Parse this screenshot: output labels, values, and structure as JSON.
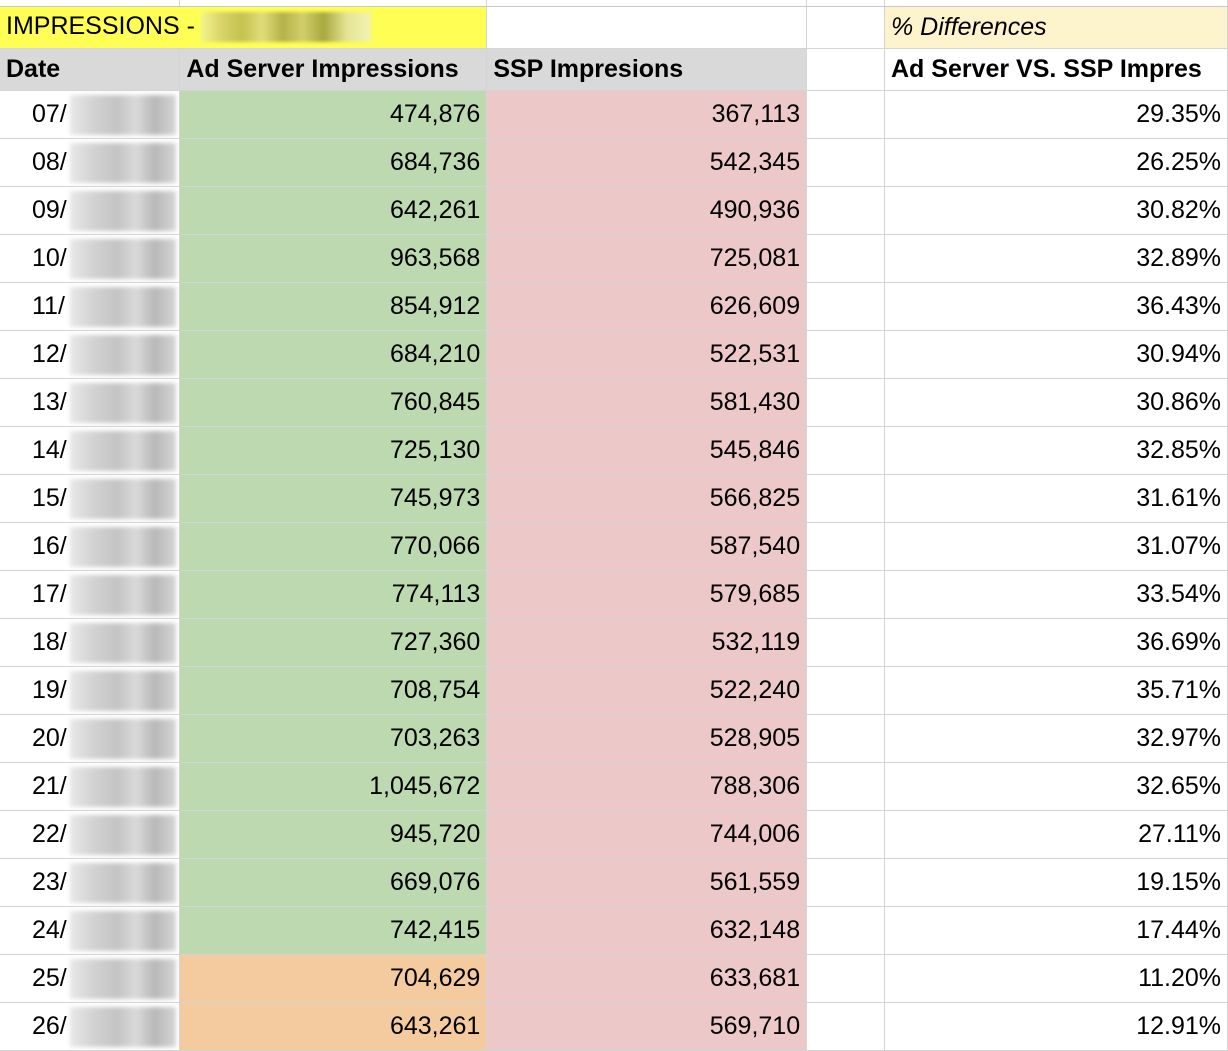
{
  "sheet": {
    "title": "IMPRESSIONS -",
    "pct_title": "% Differences",
    "headers": {
      "date": "Date",
      "ad_server": "Ad Server Impressions",
      "ssp": "SSP Impresions",
      "diff": "Ad Server VS. SSP Impres"
    },
    "rows": [
      {
        "date": "07/",
        "ad_server": "474,876",
        "ssp": "367,113",
        "diff": "29.35%",
        "ad_fill": "green"
      },
      {
        "date": "08/",
        "ad_server": "684,736",
        "ssp": "542,345",
        "diff": "26.25%",
        "ad_fill": "green"
      },
      {
        "date": "09/",
        "ad_server": "642,261",
        "ssp": "490,936",
        "diff": "30.82%",
        "ad_fill": "green"
      },
      {
        "date": "10/",
        "ad_server": "963,568",
        "ssp": "725,081",
        "diff": "32.89%",
        "ad_fill": "green"
      },
      {
        "date": "11/",
        "ad_server": "854,912",
        "ssp": "626,609",
        "diff": "36.43%",
        "ad_fill": "green"
      },
      {
        "date": "12/",
        "ad_server": "684,210",
        "ssp": "522,531",
        "diff": "30.94%",
        "ad_fill": "green"
      },
      {
        "date": "13/",
        "ad_server": "760,845",
        "ssp": "581,430",
        "diff": "30.86%",
        "ad_fill": "green"
      },
      {
        "date": "14/",
        "ad_server": "725,130",
        "ssp": "545,846",
        "diff": "32.85%",
        "ad_fill": "green"
      },
      {
        "date": "15/",
        "ad_server": "745,973",
        "ssp": "566,825",
        "diff": "31.61%",
        "ad_fill": "green"
      },
      {
        "date": "16/",
        "ad_server": "770,066",
        "ssp": "587,540",
        "diff": "31.07%",
        "ad_fill": "green"
      },
      {
        "date": "17/",
        "ad_server": "774,113",
        "ssp": "579,685",
        "diff": "33.54%",
        "ad_fill": "green"
      },
      {
        "date": "18/",
        "ad_server": "727,360",
        "ssp": "532,119",
        "diff": "36.69%",
        "ad_fill": "green"
      },
      {
        "date": "19/",
        "ad_server": "708,754",
        "ssp": "522,240",
        "diff": "35.71%",
        "ad_fill": "green"
      },
      {
        "date": "20/",
        "ad_server": "703,263",
        "ssp": "528,905",
        "diff": "32.97%",
        "ad_fill": "green"
      },
      {
        "date": "21/",
        "ad_server": "1,045,672",
        "ssp": "788,306",
        "diff": "32.65%",
        "ad_fill": "green"
      },
      {
        "date": "22/",
        "ad_server": "945,720",
        "ssp": "744,006",
        "diff": "27.11%",
        "ad_fill": "green"
      },
      {
        "date": "23/",
        "ad_server": "669,076",
        "ssp": "561,559",
        "diff": "19.15%",
        "ad_fill": "green"
      },
      {
        "date": "24/",
        "ad_server": "742,415",
        "ssp": "632,148",
        "diff": "17.44%",
        "ad_fill": "green"
      },
      {
        "date": "25/",
        "ad_server": "704,629",
        "ssp": "633,681",
        "diff": "11.20%",
        "ad_fill": "orange"
      },
      {
        "date": "26/",
        "ad_server": "643,261",
        "ssp": "569,710",
        "diff": "12.91%",
        "ad_fill": "orange"
      }
    ]
  },
  "colors": {
    "title_fill": "#fefe55",
    "pct_title_fill": "#fdf4cd",
    "header_fill": "#d9d9d9",
    "green": "#bcd9b0",
    "red": "#ecc9c8",
    "orange": "#f3cb9f"
  }
}
